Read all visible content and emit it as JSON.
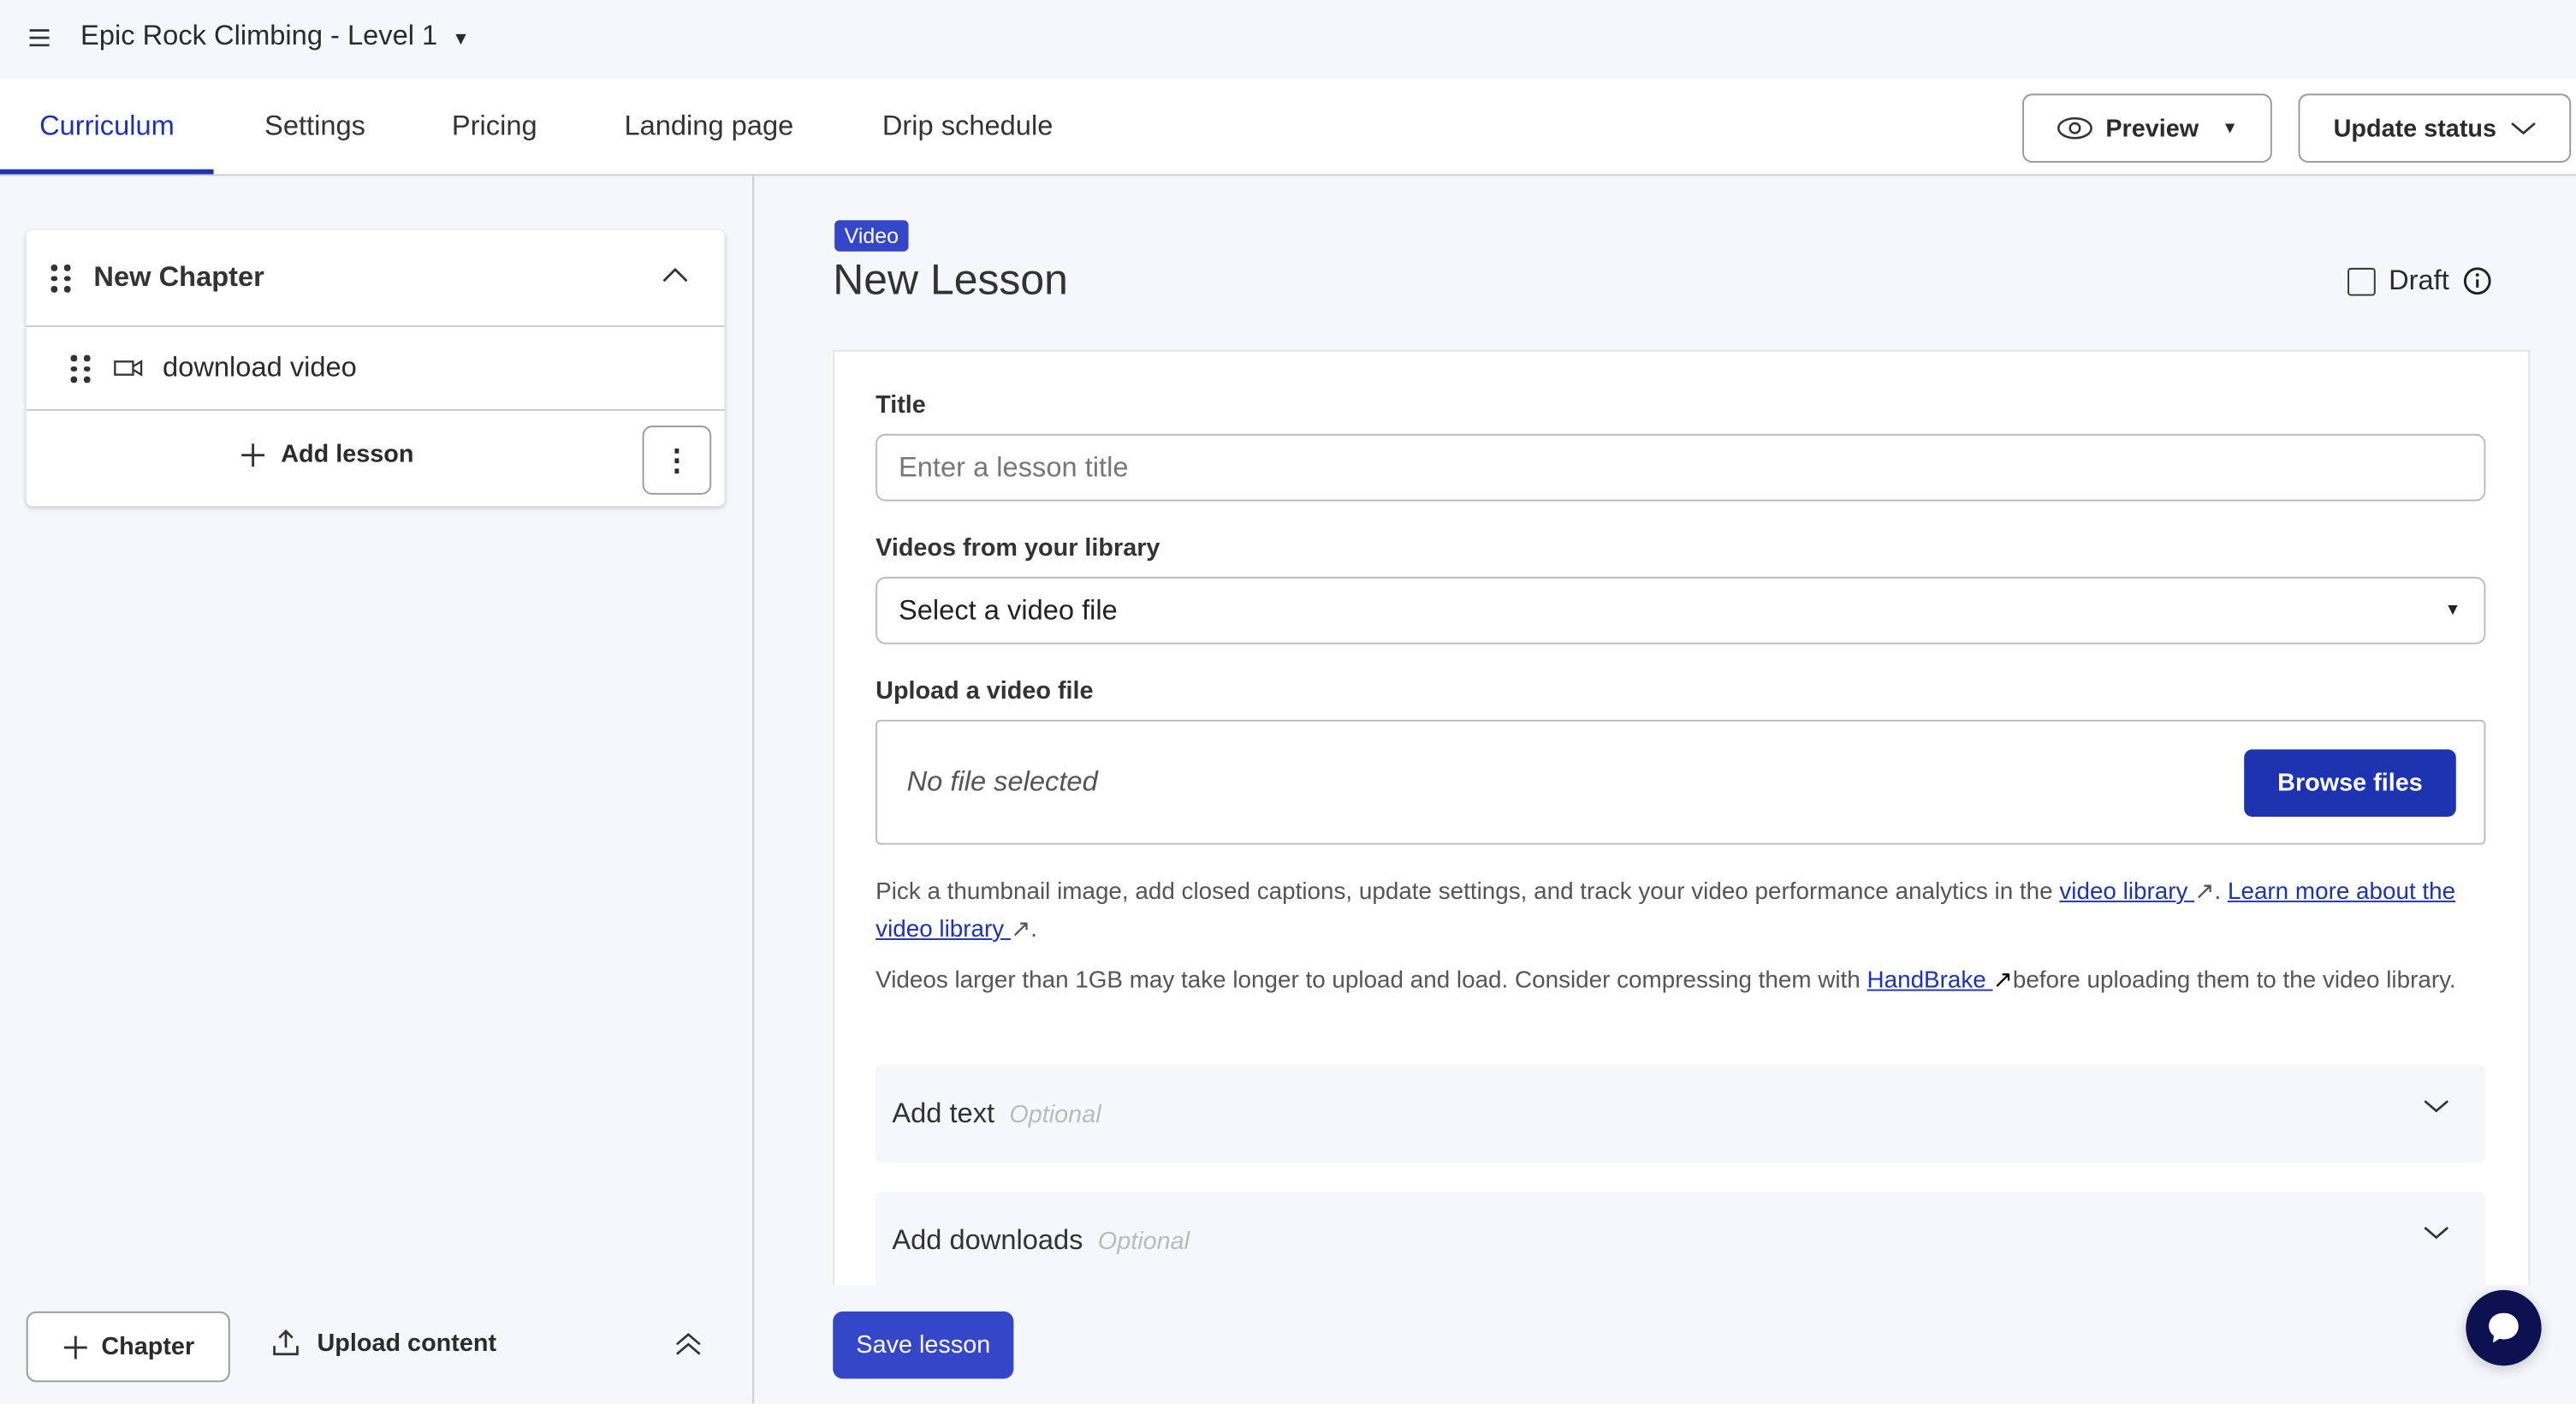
{
  "header": {
    "course_title": "Epic Rock Climbing - Level 1"
  },
  "tabs": [
    {
      "label": "Curriculum",
      "active": true
    },
    {
      "label": "Settings"
    },
    {
      "label": "Pricing"
    },
    {
      "label": "Landing page"
    },
    {
      "label": "Drip schedule"
    }
  ],
  "actions": {
    "preview": "Preview",
    "update_status": "Update status"
  },
  "sidebar": {
    "chapter_title": "New Chapter",
    "lessons": [
      {
        "title": "download video",
        "icon": "video-icon"
      }
    ],
    "add_lesson": "Add lesson",
    "add_chapter": "Chapter",
    "upload_content": "Upload content"
  },
  "lesson": {
    "badge": "Video",
    "title": "New Lesson",
    "draft_label": "Draft",
    "draft_checked": false,
    "title_label": "Title",
    "title_placeholder": "Enter a lesson title",
    "library_label": "Videos from your library",
    "library_selected": "Select a video file",
    "upload_label": "Upload a video file",
    "no_file": "No file selected",
    "browse": "Browse files",
    "help1_pre": "Pick a thumbnail image, add closed captions, update settings, and track your video performance analytics in the ",
    "help1_link1": "video library ",
    "help1_mid": ". ",
    "help1_link2": "Learn more about the video library ",
    "help1_end": ".",
    "help2_pre": "Videos larger than 1GB may take longer to upload and load. Consider compressing them with ",
    "help2_link": "HandBrake ",
    "help2_post": "before uploading them to the video library.",
    "add_text": "Add text",
    "add_downloads": "Add downloads",
    "optional": "Optional",
    "save": "Save lesson"
  },
  "colors": {
    "accent": "#1e33b0",
    "button": "#3347c8",
    "chat": "#0c1152"
  }
}
